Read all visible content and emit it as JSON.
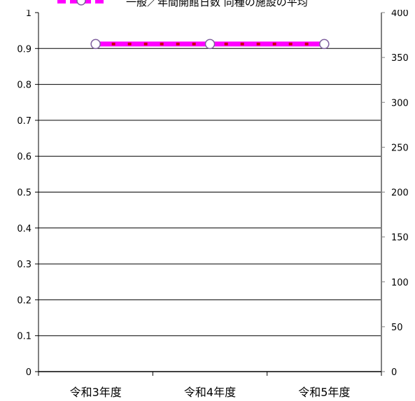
{
  "chart_data": {
    "type": "line",
    "categories": [
      "令和3年度",
      "令和4年度",
      "令和5年度"
    ],
    "series": [
      {
        "name": "一般／年間開館日数 同種の施設の平均",
        "axis": "right",
        "values": [
          365,
          365,
          365
        ],
        "color": "#ff00ff",
        "dash_color": "#cc0000",
        "marker": "circle-open"
      }
    ],
    "y_left": {
      "range": [
        0,
        1
      ],
      "ticks": [
        "0",
        "0.1",
        "0.2",
        "0.3",
        "0.4",
        "0.5",
        "0.6",
        "0.7",
        "0.8",
        "0.9",
        "1"
      ]
    },
    "y_right": {
      "range": [
        0,
        400
      ],
      "ticks": [
        "0",
        "50",
        "100",
        "150",
        "200",
        "250",
        "300",
        "350",
        "400"
      ]
    },
    "grid": true,
    "legend_position": "top"
  }
}
